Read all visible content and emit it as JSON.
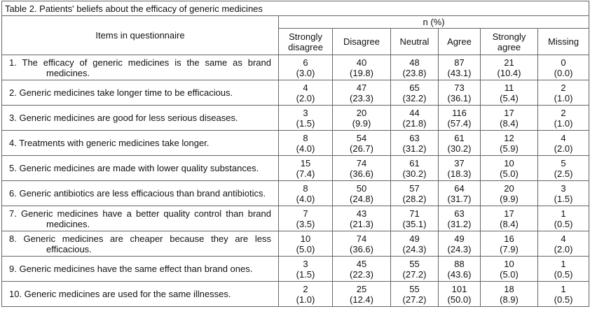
{
  "title": "Table 2. Patients' beliefs about the efficacy of generic medicines",
  "table": {
    "item_header": "Items in questionnaire",
    "group_header": "n (%)",
    "columns": [
      "Strongly disagree",
      "Disagree",
      "Neutral",
      "Agree",
      "Strongly agree",
      "Missing"
    ],
    "rows": [
      {
        "item": "1. The efficacy of generic medicines is the same as brand medicines.",
        "cells": [
          [
            6,
            "(3.0)"
          ],
          [
            40,
            "(19.8)"
          ],
          [
            48,
            "(23.8)"
          ],
          [
            87,
            "(43.1)"
          ],
          [
            21,
            "(10.4)"
          ],
          [
            0,
            "(0.0)"
          ]
        ]
      },
      {
        "item": "2. Generic medicines take longer time to be efficacious.",
        "cells": [
          [
            4,
            "(2.0)"
          ],
          [
            47,
            "(23.3)"
          ],
          [
            65,
            "(32.2)"
          ],
          [
            73,
            "(36.1)"
          ],
          [
            11,
            "(5.4)"
          ],
          [
            2,
            "(1.0)"
          ]
        ]
      },
      {
        "item": "3. Generic medicines are good for less serious diseases.",
        "cells": [
          [
            3,
            "(1.5)"
          ],
          [
            20,
            "(9.9)"
          ],
          [
            44,
            "(21.8)"
          ],
          [
            116,
            "(57.4)"
          ],
          [
            17,
            "(8.4)"
          ],
          [
            2,
            "(1.0)"
          ]
        ]
      },
      {
        "item": "4. Treatments with generic medicines take longer.",
        "cells": [
          [
            8,
            "(4.0)"
          ],
          [
            54,
            "(26.7)"
          ],
          [
            63,
            "(31.2)"
          ],
          [
            61,
            "(30.2)"
          ],
          [
            12,
            "(5.9)"
          ],
          [
            4,
            "(2.0)"
          ]
        ]
      },
      {
        "item": "5. Generic medicines are made with lower quality substances.",
        "cells": [
          [
            15,
            "(7.4)"
          ],
          [
            74,
            "(36.6)"
          ],
          [
            61,
            "(30.2)"
          ],
          [
            37,
            "(18.3)"
          ],
          [
            10,
            "(5.0)"
          ],
          [
            5,
            "(2.5)"
          ]
        ]
      },
      {
        "item": "6. Generic antibiotics are less efficacious than brand antibiotics.",
        "cells": [
          [
            8,
            "(4.0)"
          ],
          [
            50,
            "(24.8)"
          ],
          [
            57,
            "(28.2)"
          ],
          [
            64,
            "(31.7)"
          ],
          [
            20,
            "(9.9)"
          ],
          [
            3,
            "(1.5)"
          ]
        ]
      },
      {
        "item": "7. Generic medicines have a better quality control than brand medicines.",
        "cells": [
          [
            7,
            "(3.5)"
          ],
          [
            43,
            "(21.3)"
          ],
          [
            71,
            "(35.1)"
          ],
          [
            63,
            "(31.2)"
          ],
          [
            17,
            "(8.4)"
          ],
          [
            1,
            "(0.5)"
          ]
        ]
      },
      {
        "item": "8. Generic medicines are cheaper because they are less efficacious.",
        "cells": [
          [
            10,
            "(5.0)"
          ],
          [
            74,
            "(36.6)"
          ],
          [
            49,
            "(24.3)"
          ],
          [
            49,
            "(24.3)"
          ],
          [
            16,
            "(7.9)"
          ],
          [
            4,
            "(2.0)"
          ]
        ]
      },
      {
        "item": "9. Generic medicines have the same effect than brand ones.",
        "cells": [
          [
            3,
            "(1.5)"
          ],
          [
            45,
            "(22.3)"
          ],
          [
            55,
            "(27.2)"
          ],
          [
            88,
            "(43.6)"
          ],
          [
            10,
            "(5.0)"
          ],
          [
            1,
            "(0.5)"
          ]
        ]
      },
      {
        "item": "10. Generic medicines are used for the same illnesses.",
        "cells": [
          [
            2,
            "(1.0)"
          ],
          [
            25,
            "(12.4)"
          ],
          [
            55,
            "(27.2)"
          ],
          [
            101,
            "(50.0)"
          ],
          [
            18,
            "(8.9)"
          ],
          [
            1,
            "(0.5)"
          ]
        ]
      }
    ]
  }
}
